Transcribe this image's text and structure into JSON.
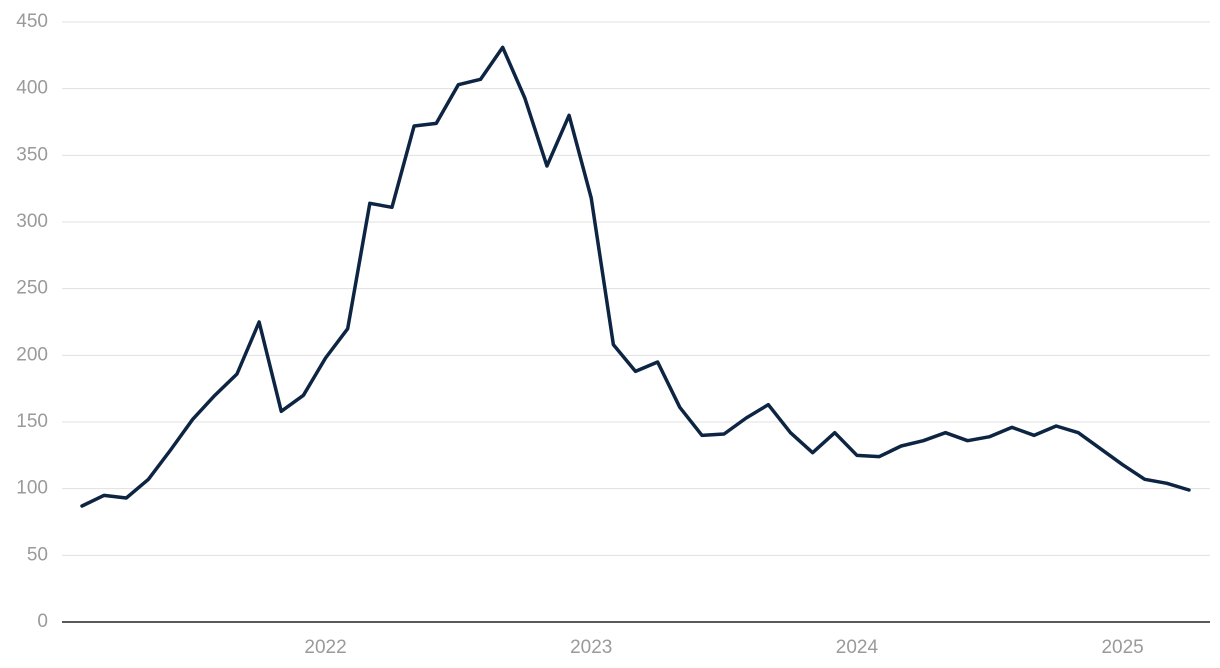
{
  "chart_data": {
    "type": "line",
    "categories": [
      null,
      null,
      null,
      null,
      null,
      null,
      null,
      null,
      null,
      null,
      null,
      "2022",
      null,
      null,
      null,
      null,
      null,
      null,
      null,
      null,
      null,
      null,
      null,
      "2023",
      null,
      null,
      null,
      null,
      null,
      null,
      null,
      null,
      null,
      null,
      null,
      "2024",
      null,
      null,
      null,
      null,
      null,
      null,
      null,
      null,
      null,
      null,
      null,
      "2025",
      null,
      null,
      null
    ],
    "series": [
      {
        "color": "#0d2543",
        "values": [
          87,
          95,
          93,
          107,
          129,
          152,
          170,
          186,
          225,
          158,
          170,
          198,
          220,
          314,
          311,
          372,
          374,
          403,
          407,
          431,
          393,
          342,
          380,
          318,
          208,
          188,
          195,
          161,
          140,
          141,
          153,
          163,
          142,
          127,
          142,
          125,
          124,
          132,
          136,
          142,
          136,
          139,
          146,
          140,
          147,
          142,
          130,
          118,
          107,
          104,
          99
        ]
      }
    ],
    "ylim": [
      0,
      450
    ],
    "yticks": [
      0,
      50,
      100,
      150,
      200,
      250,
      300,
      350,
      400,
      450
    ],
    "grid": true
  }
}
